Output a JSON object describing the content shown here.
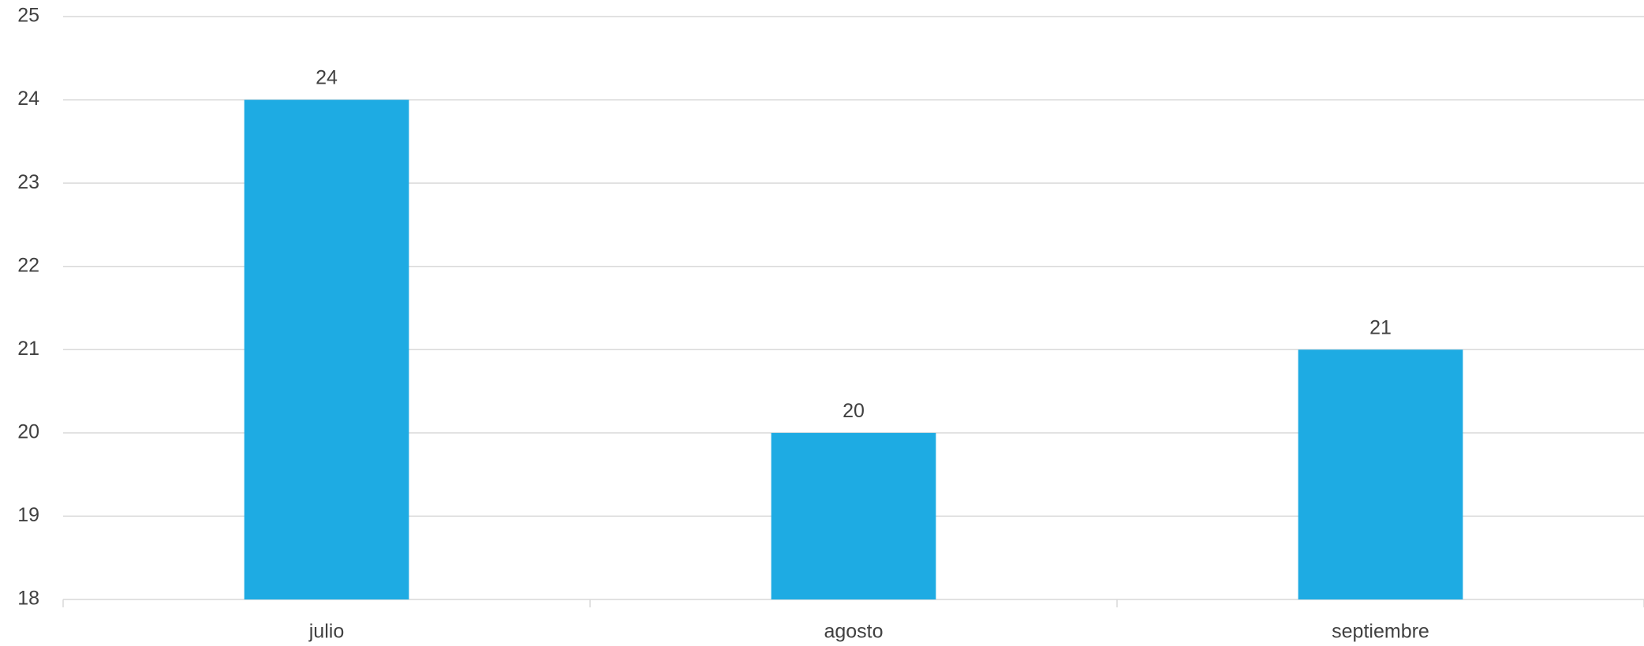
{
  "chart_data": {
    "type": "bar",
    "categories": [
      "julio",
      "agosto",
      "septiembre"
    ],
    "values": [
      24,
      20,
      21
    ],
    "data_labels": [
      "24",
      "20",
      "21"
    ],
    "title": "",
    "xlabel": "",
    "ylabel": "",
    "ylim": [
      18,
      25
    ],
    "yticks": [
      "18",
      "19",
      "20",
      "21",
      "22",
      "23",
      "24",
      "25"
    ],
    "grid": true,
    "legend": "none",
    "bar_color": "#1eabe3",
    "grid_color": "#d9d9d9",
    "text_color": "#404040"
  }
}
